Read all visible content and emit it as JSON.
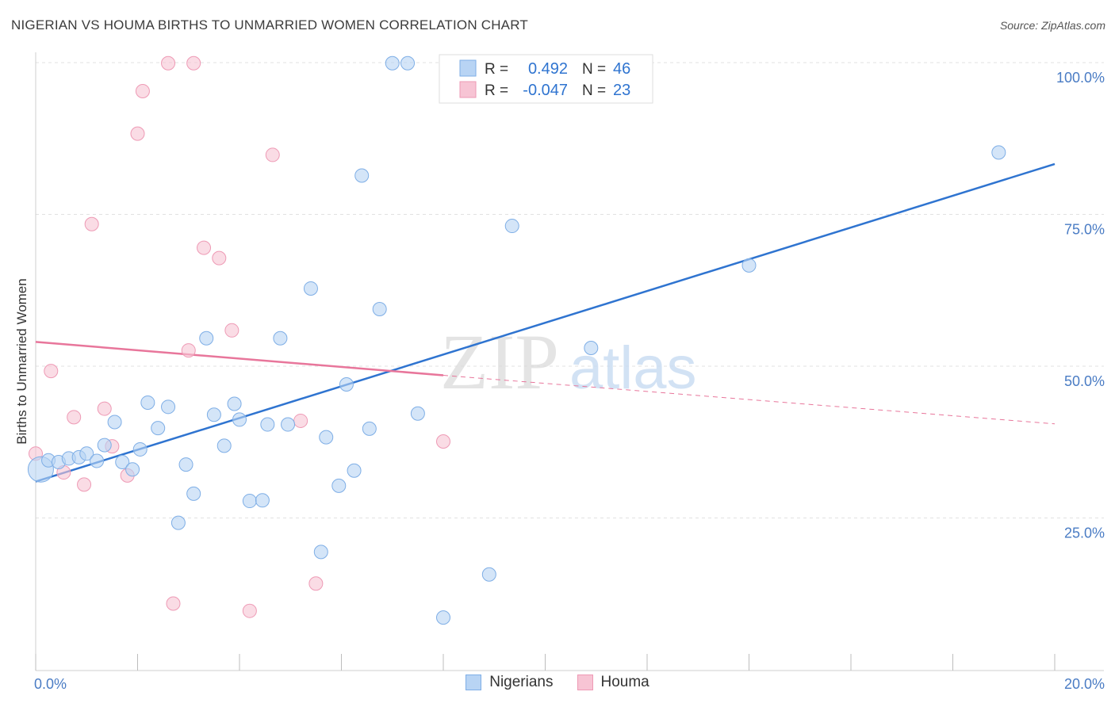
{
  "title": "NIGERIAN VS HOUMA BIRTHS TO UNMARRIED WOMEN CORRELATION CHART",
  "source": "Source: ZipAtlas.com",
  "watermark": {
    "zip": "ZIP",
    "atlas": "atlas"
  },
  "colors": {
    "blue_fill": "#b8d4f4",
    "blue_stroke": "#7eaee6",
    "blue_line": "#2f74d0",
    "pink_fill": "#f7c4d4",
    "pink_stroke": "#ee9ab5",
    "pink_line": "#e8769b",
    "axis_label": "#4a7cc4"
  },
  "legend_stats": [
    {
      "r_label": "R =",
      "r_value": "0.492",
      "n_label": "N =",
      "n_value": "46"
    },
    {
      "r_label": "R =",
      "r_value": "-0.047",
      "n_label": "N =",
      "n_value": "23"
    }
  ],
  "chart_data": {
    "type": "scatter",
    "title": "NIGERIAN VS HOUMA BIRTHS TO UNMARRIED WOMEN CORRELATION CHART",
    "xlabel": "",
    "ylabel": "Births to Unmarried Women",
    "xlim": [
      0,
      20
    ],
    "ylim": [
      0,
      102
    ],
    "x_tick_labels": [
      "0.0%",
      "20.0%"
    ],
    "y_ticks": [
      25,
      50,
      75,
      100
    ],
    "y_tick_labels": [
      "25.0%",
      "50.0%",
      "75.0%",
      "100.0%"
    ],
    "grid": true,
    "legend_position": "top-center",
    "series": [
      {
        "name": "Nigerians",
        "color": "#b8d4f4",
        "points": [
          [
            0.1,
            33.0
          ],
          [
            0.25,
            34.5
          ],
          [
            0.45,
            34.2
          ],
          [
            0.65,
            34.8
          ],
          [
            0.85,
            35.0
          ],
          [
            1.0,
            35.6
          ],
          [
            1.2,
            34.4
          ],
          [
            1.35,
            37.0
          ],
          [
            1.55,
            40.8
          ],
          [
            1.7,
            34.2
          ],
          [
            1.9,
            33.0
          ],
          [
            2.05,
            36.3
          ],
          [
            2.2,
            44.0
          ],
          [
            2.4,
            39.8
          ],
          [
            2.6,
            43.3
          ],
          [
            2.8,
            24.2
          ],
          [
            2.95,
            33.8
          ],
          [
            3.1,
            29.0
          ],
          [
            3.35,
            54.6
          ],
          [
            3.5,
            42.0
          ],
          [
            3.7,
            36.9
          ],
          [
            3.9,
            43.8
          ],
          [
            4.0,
            41.2
          ],
          [
            4.2,
            27.8
          ],
          [
            4.45,
            27.9
          ],
          [
            4.55,
            40.4
          ],
          [
            4.8,
            54.6
          ],
          [
            4.95,
            40.4
          ],
          [
            5.4,
            62.8
          ],
          [
            5.6,
            19.4
          ],
          [
            5.7,
            38.3
          ],
          [
            5.95,
            30.3
          ],
          [
            6.1,
            47.0
          ],
          [
            6.25,
            32.8
          ],
          [
            6.4,
            81.4
          ],
          [
            6.55,
            39.7
          ],
          [
            6.75,
            59.4
          ],
          [
            7.0,
            99.9
          ],
          [
            7.3,
            99.9
          ],
          [
            7.5,
            42.2
          ],
          [
            8.0,
            8.6
          ],
          [
            8.9,
            15.7
          ],
          [
            9.35,
            73.1
          ],
          [
            10.9,
            53.0
          ],
          [
            14.0,
            66.6
          ],
          [
            18.9,
            85.2
          ]
        ]
      },
      {
        "name": "Houma",
        "color": "#f7c4d4",
        "points": [
          [
            0.0,
            35.6
          ],
          [
            0.3,
            49.2
          ],
          [
            0.55,
            32.5
          ],
          [
            0.75,
            41.6
          ],
          [
            0.95,
            30.5
          ],
          [
            1.1,
            73.4
          ],
          [
            1.35,
            43.0
          ],
          [
            1.5,
            36.8
          ],
          [
            1.8,
            32.0
          ],
          [
            2.0,
            88.3
          ],
          [
            2.1,
            95.3
          ],
          [
            2.6,
            99.9
          ],
          [
            2.7,
            10.9
          ],
          [
            3.0,
            52.6
          ],
          [
            3.1,
            99.9
          ],
          [
            3.3,
            69.5
          ],
          [
            3.6,
            67.8
          ],
          [
            3.85,
            55.9
          ],
          [
            4.2,
            9.7
          ],
          [
            4.65,
            84.8
          ],
          [
            5.2,
            41.0
          ],
          [
            5.5,
            14.2
          ],
          [
            8.0,
            37.6
          ]
        ]
      }
    ],
    "trend_lines": [
      {
        "series": "Nigerians",
        "x": [
          0,
          20
        ],
        "y": [
          31.0,
          83.3
        ],
        "style": "solid"
      },
      {
        "series": "Houma",
        "x": [
          0,
          8
        ],
        "y": [
          54.0,
          48.5
        ],
        "style": "solid"
      },
      {
        "series": "Houma",
        "x": [
          8,
          20
        ],
        "y": [
          48.5,
          40.5
        ],
        "style": "dashed"
      }
    ]
  }
}
